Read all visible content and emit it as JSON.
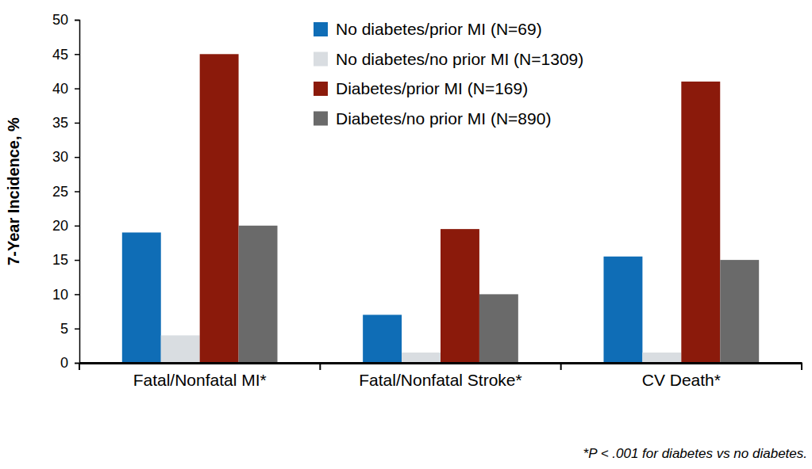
{
  "chart_data": {
    "type": "bar",
    "categories": [
      "Fatal/Nonfatal MI*",
      "Fatal/Nonfatal Stroke*",
      "CV Death*"
    ],
    "series": [
      {
        "name": "No diabetes/prior MI (N=69)",
        "color": "#0f6db6",
        "values": [
          19,
          7,
          15.5
        ]
      },
      {
        "name": "No diabetes/no prior MI (N=1309)",
        "color": "#d9dde1",
        "values": [
          4,
          1.5,
          1.5
        ]
      },
      {
        "name": "Diabetes/prior MI (N=169)",
        "color": "#8b1a0b",
        "values": [
          45,
          19.5,
          41
        ]
      },
      {
        "name": "Diabetes/no prior MI (N=890)",
        "color": "#6a6a6a",
        "values": [
          20,
          10,
          15
        ]
      }
    ],
    "y_label": "7-Year Incidence, %",
    "ylim": [
      0,
      50
    ],
    "yticks": [
      0,
      5,
      10,
      15,
      20,
      25,
      30,
      35,
      40,
      45,
      50
    ],
    "annotations": [
      "*P < .001 for diabetes vs no diabetes."
    ],
    "legend": "top"
  }
}
